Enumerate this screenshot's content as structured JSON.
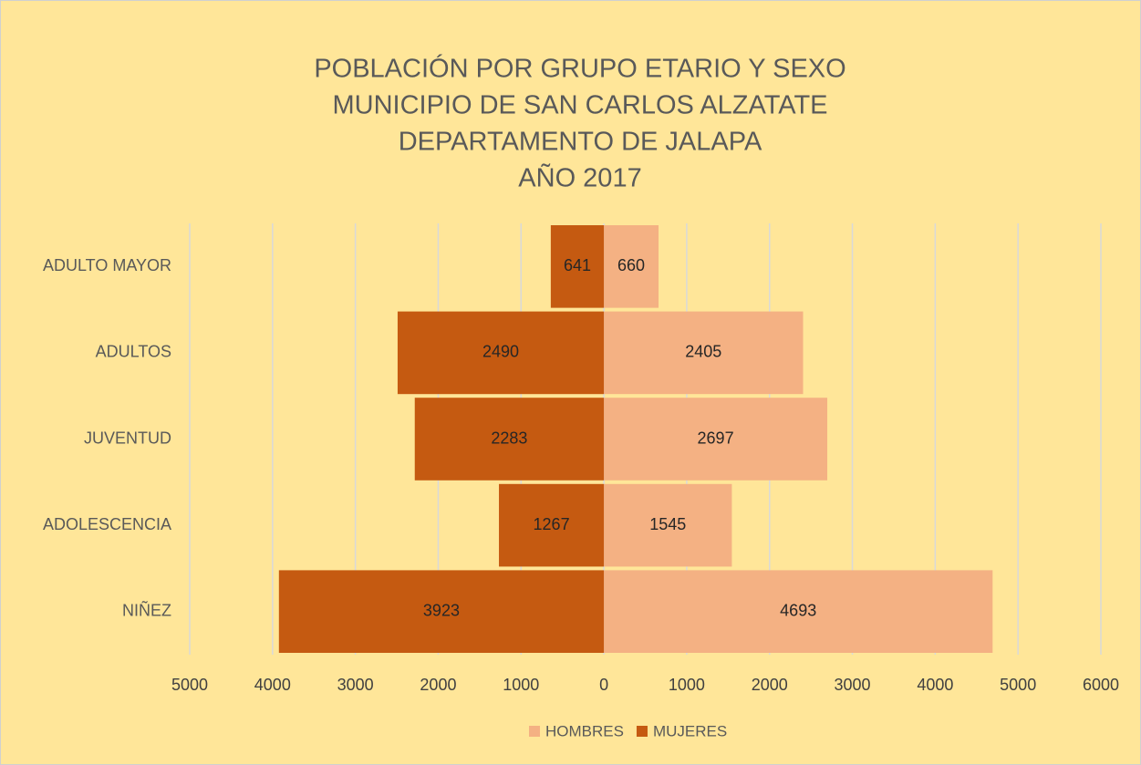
{
  "chart_data": {
    "type": "pyramid",
    "title": [
      "POBLACIÓN POR GRUPO ETARIO Y SEXO",
      "MUNICIPIO DE SAN CARLOS ALZATATE",
      "DEPARTAMENTO DE JALAPA",
      "AÑO 2017"
    ],
    "categories": [
      "ADULTO MAYOR",
      "ADULTOS",
      "JUVENTUD",
      "ADOLESCENCIA",
      "NIÑEZ"
    ],
    "series": [
      {
        "name": "HOMBRES",
        "color": "#f4b183",
        "values": [
          660,
          2405,
          2697,
          1545,
          4693
        ]
      },
      {
        "name": "MUJERES",
        "color": "#c55a11",
        "values": [
          -641,
          -2490,
          -2283,
          -1267,
          -3923
        ],
        "value_labels": [
          "641",
          "2490",
          "2283",
          "1267",
          "3923"
        ]
      }
    ],
    "xlim": [
      -5000,
      6000
    ],
    "xticks": [
      {
        "value": -5000,
        "label": "5000"
      },
      {
        "value": -4000,
        "label": "4000"
      },
      {
        "value": -3000,
        "label": "3000"
      },
      {
        "value": -2000,
        "label": "2000"
      },
      {
        "value": -1000,
        "label": "1000"
      },
      0,
      1000,
      2000,
      3000,
      4000,
      5000,
      6000
    ],
    "grid": true,
    "legend": "bottom"
  }
}
